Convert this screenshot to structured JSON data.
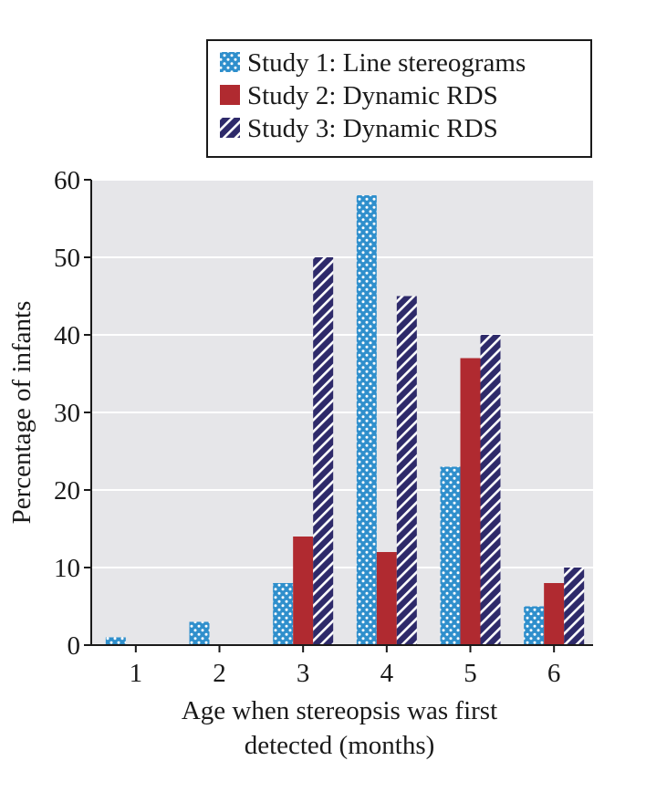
{
  "chart_data": {
    "type": "bar",
    "title": "",
    "xlabel_lines": [
      "Age when stereopsis was first",
      "detected (months)"
    ],
    "ylabel": "Percentage of infants",
    "categories": [
      "1",
      "2",
      "3",
      "4",
      "5",
      "6"
    ],
    "ylim": [
      0,
      60
    ],
    "yticks": [
      0,
      10,
      20,
      30,
      40,
      50,
      60
    ],
    "grid": true,
    "legend_position": "top-right",
    "series": [
      {
        "name": "Study 1: Line stereograms",
        "pattern": "dots",
        "color": "#2f8fcc",
        "pattern_color": "#ffffff",
        "values": [
          1,
          3,
          8,
          58,
          23,
          5
        ]
      },
      {
        "name": "Study 2: Dynamic RDS",
        "pattern": "solid",
        "color": "#b02a30",
        "pattern_color": "#b02a30",
        "values": [
          0,
          0,
          14,
          12,
          37,
          8
        ]
      },
      {
        "name": "Study 3: Dynamic RDS",
        "pattern": "stripes",
        "color": "#2e2a6a",
        "pattern_color": "#ffffff",
        "values": [
          0,
          0,
          50,
          45,
          40,
          10
        ]
      }
    ],
    "colors": {
      "plot_background": "#e6e6e9",
      "gridline": "#ffffff",
      "axis": "#1a1a1a"
    }
  }
}
